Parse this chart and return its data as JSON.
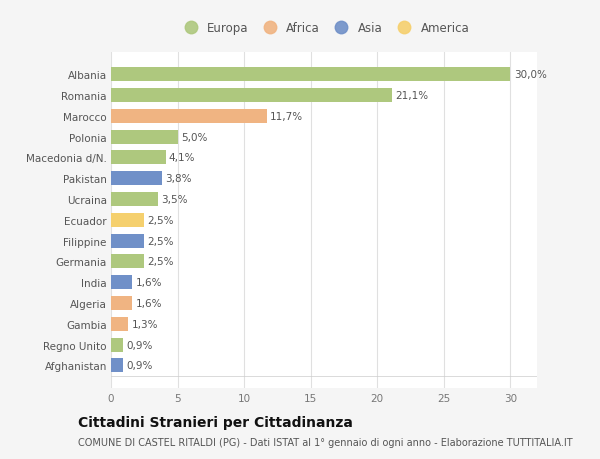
{
  "categories": [
    "Albania",
    "Romania",
    "Marocco",
    "Polonia",
    "Macedonia d/N.",
    "Pakistan",
    "Ucraina",
    "Ecuador",
    "Filippine",
    "Germania",
    "India",
    "Algeria",
    "Gambia",
    "Regno Unito",
    "Afghanistan"
  ],
  "values": [
    30.0,
    21.1,
    11.7,
    5.0,
    4.1,
    3.8,
    3.5,
    2.5,
    2.5,
    2.5,
    1.6,
    1.6,
    1.3,
    0.9,
    0.9
  ],
  "labels": [
    "30,0%",
    "21,1%",
    "11,7%",
    "5,0%",
    "4,1%",
    "3,8%",
    "3,5%",
    "2,5%",
    "2,5%",
    "2,5%",
    "1,6%",
    "1,6%",
    "1,3%",
    "0,9%",
    "0,9%"
  ],
  "continents": [
    "Europa",
    "Europa",
    "Africa",
    "Europa",
    "Europa",
    "Asia",
    "Europa",
    "America",
    "Asia",
    "Europa",
    "Asia",
    "Africa",
    "Africa",
    "Europa",
    "Asia"
  ],
  "colors": {
    "Europa": "#aec87e",
    "Africa": "#f0b482",
    "Asia": "#7090c8",
    "America": "#f5d06e"
  },
  "legend_order": [
    "Europa",
    "Africa",
    "Asia",
    "America"
  ],
  "title": "Cittadini Stranieri per Cittadinanza",
  "subtitle": "COMUNE DI CASTEL RITALDI (PG) - Dati ISTAT al 1° gennaio di ogni anno - Elaborazione TUTTITALIA.IT",
  "xlim": [
    0,
    32
  ],
  "xticks": [
    0,
    5,
    10,
    15,
    20,
    25,
    30
  ],
  "background_color": "#f5f5f5",
  "bar_background_color": "#ffffff",
  "grid_color": "#e0e0e0",
  "title_fontsize": 10,
  "subtitle_fontsize": 7,
  "label_fontsize": 7.5,
  "tick_fontsize": 7.5,
  "legend_fontsize": 8.5
}
